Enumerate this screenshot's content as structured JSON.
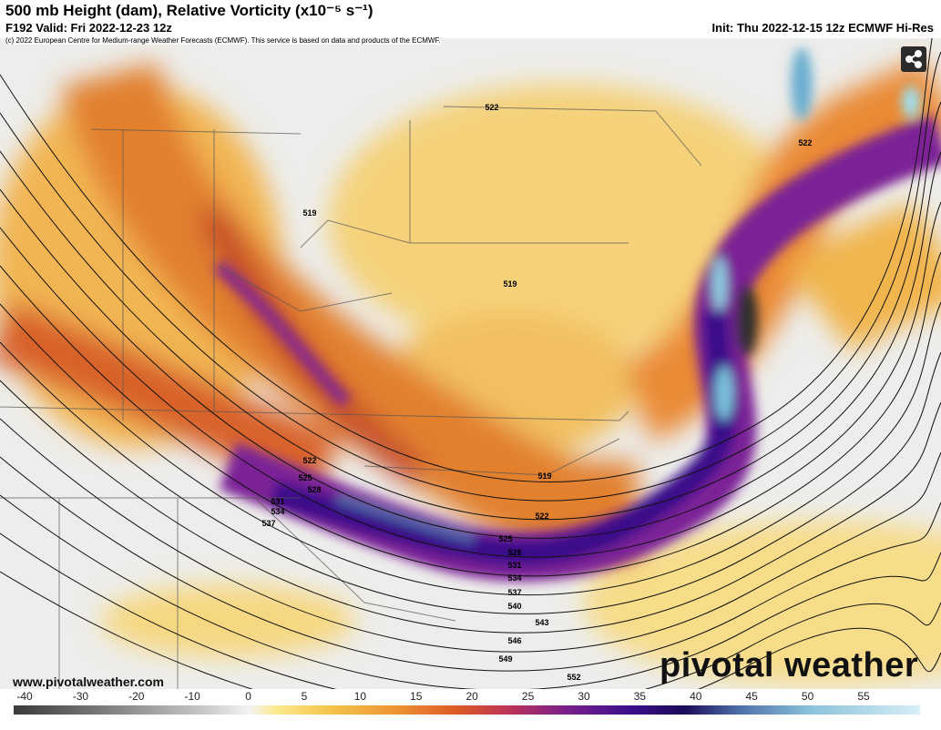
{
  "header": {
    "title": "500 mb Height (dam), Relative Vorticity (x10⁻⁵ s⁻¹)",
    "valid": "F192 Valid: Fri 2022-12-23 12z",
    "init": "Init: Thu 2022-12-15 12z ECMWF Hi-Res",
    "copyright": "(c) 2022 European Centre for Medium-range Weather Forecasts (ECMWF). This service is based on data and products of the ECMWF."
  },
  "map": {
    "contour_labels": [
      522,
      522,
      519,
      519,
      522,
      525,
      528,
      531,
      534,
      537,
      519,
      522,
      525,
      528,
      531,
      534,
      537,
      540,
      543,
      546,
      549,
      552
    ]
  },
  "colorbar": {
    "ticks": [
      -40,
      -30,
      -20,
      -10,
      0,
      5,
      10,
      15,
      20,
      25,
      30,
      35,
      40,
      45,
      50,
      55
    ]
  },
  "footer": {
    "url": "www.pivotalweather.com",
    "watermark": "pivotal weather"
  }
}
